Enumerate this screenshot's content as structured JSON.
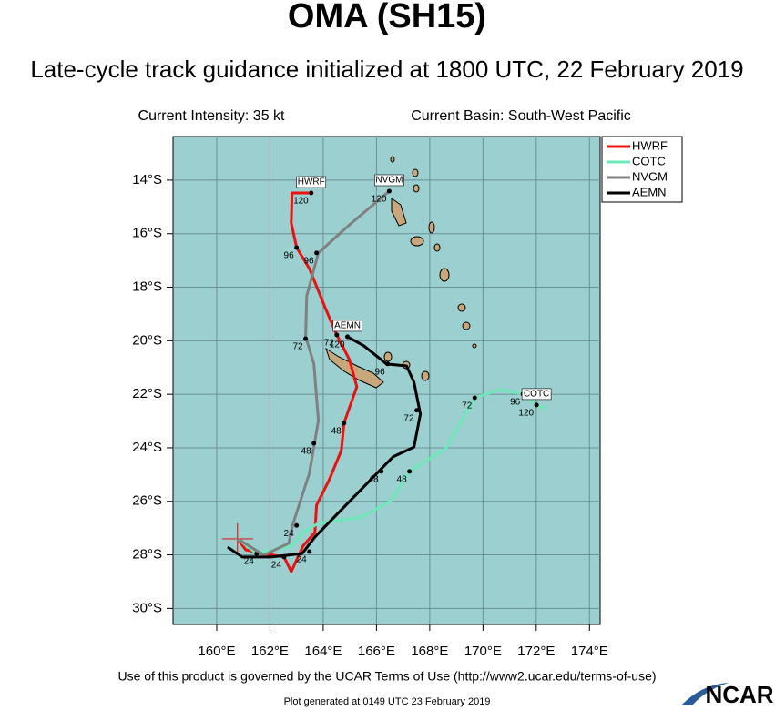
{
  "chart_data": {
    "type": "track",
    "title": "OMA (SH15)",
    "subtitle": "Late-cycle track guidance initialized at 1800 UTC, 22 February 2019",
    "current_intensity": "Current Intensity: 35 kt",
    "current_basin": "Current Basin: South-West Pacific",
    "footer": "Use of this product is governed by the UCAR Terms of Use (http://www2.ucar.edu/terms-of-use)",
    "generated": "Plot generated at 0149 UTC  23 February 2019",
    "logo": "NCAR",
    "xlim": [
      158.36,
      174.4
    ],
    "ylim": [
      -30.6,
      -12.37
    ],
    "xticks": [
      {
        "value": 160,
        "label": "160°E"
      },
      {
        "value": 162,
        "label": "162°E"
      },
      {
        "value": 164,
        "label": "164°E"
      },
      {
        "value": 166,
        "label": "166°E"
      },
      {
        "value": 168,
        "label": "168°E"
      },
      {
        "value": 170,
        "label": "170°E"
      },
      {
        "value": 172,
        "label": "172°E"
      },
      {
        "value": 174,
        "label": "174°E"
      }
    ],
    "yticks": [
      {
        "value": -14,
        "label": "14°S"
      },
      {
        "value": -16,
        "label": "16°S"
      },
      {
        "value": -18,
        "label": "18°S"
      },
      {
        "value": -20,
        "label": "20°S"
      },
      {
        "value": -22,
        "label": "22°S"
      },
      {
        "value": -24,
        "label": "24°S"
      },
      {
        "value": -26,
        "label": "26°S"
      },
      {
        "value": -28,
        "label": "28°S"
      },
      {
        "value": -30,
        "label": "30°S"
      }
    ],
    "grid": true,
    "legend": "top-right",
    "initial_position": {
      "x": 160.78,
      "y": -27.4
    },
    "series": [
      {
        "name": "HWRF",
        "color": "#e8130f",
        "x": [
          160.78,
          161.09,
          161.77,
          162.53,
          162.8,
          163.24,
          163.69,
          163.75,
          164.23,
          164.68,
          164.78,
          165.26,
          164.98,
          164.51,
          164.1,
          163.48,
          163.0,
          162.8,
          162.83,
          163.55
        ],
        "values": [
          -27.4,
          -27.81,
          -27.95,
          -28.08,
          -28.63,
          -27.67,
          -27.16,
          -26.14,
          -25.19,
          -24.1,
          -23.08,
          -21.72,
          -20.7,
          -19.78,
          -18.83,
          -17.3,
          -16.52,
          -15.6,
          -14.48,
          -14.48
        ],
        "forecast_points": [
          {
            "hour": 24,
            "x": 162.53,
            "y": -28.08
          },
          {
            "hour": 48,
            "x": 164.78,
            "y": -23.08
          },
          {
            "hour": 72,
            "x": 164.51,
            "y": -19.78
          },
          {
            "hour": 96,
            "x": 163.0,
            "y": -16.52
          },
          {
            "hour": 120,
            "x": 163.55,
            "y": -14.48
          }
        ]
      },
      {
        "name": "COTC",
        "color": "#6fe8b8",
        "x": [
          160.78,
          161.5,
          162.8,
          163.24,
          163.82,
          165.46,
          166.55,
          167.24,
          168.6,
          169.45,
          169.69,
          170.65,
          171.5,
          172.01,
          172.35
        ],
        "values": [
          -27.4,
          -27.95,
          -27.67,
          -27.16,
          -26.82,
          -26.59,
          -25.97,
          -24.88,
          -24.03,
          -22.57,
          -22.13,
          -21.82,
          -21.99,
          -22.4,
          -22.54
        ],
        "forecast_points": [
          {
            "hour": 24,
            "x": 161.5,
            "y": -27.95
          },
          {
            "hour": 48,
            "x": 167.24,
            "y": -24.88
          },
          {
            "hour": 72,
            "x": 169.69,
            "y": -22.13
          },
          {
            "hour": 96,
            "x": 171.5,
            "y": -21.99
          },
          {
            "hour": 120,
            "x": 172.01,
            "y": -22.4
          }
        ]
      },
      {
        "name": "NVGM",
        "color": "#808080",
        "x": [
          160.78,
          161.77,
          162.7,
          162.87,
          163.48,
          163.82,
          163.65,
          163.34,
          163.38,
          163.82,
          164.95,
          166.48
        ],
        "values": [
          -27.4,
          -28.01,
          -27.57,
          -26.82,
          -24.95,
          -22.98,
          -20.87,
          -19.85,
          -18.32,
          -16.72,
          -15.7,
          -14.41
        ],
        "forecast_points": [
          {
            "hour": 24,
            "x": 163.0,
            "y": -26.9
          },
          {
            "hour": 48,
            "x": 163.65,
            "y": -23.83
          },
          {
            "hour": 72,
            "x": 163.34,
            "y": -19.92
          },
          {
            "hour": 96,
            "x": 163.75,
            "y": -16.72
          },
          {
            "hour": 120,
            "x": 166.48,
            "y": -14.41
          }
        ]
      },
      {
        "name": "AEMN",
        "color": "#000000",
        "x": [
          160.41,
          160.96,
          162.05,
          163.21,
          163.69,
          164.85,
          166.62,
          167.41,
          167.65,
          167.41,
          167.13,
          166.38,
          165.53,
          164.91
        ],
        "values": [
          -27.71,
          -28.08,
          -28.08,
          -27.95,
          -27.33,
          -26.14,
          -24.34,
          -23.97,
          -22.74,
          -21.55,
          -20.94,
          -20.87,
          -20.19,
          -19.85
        ],
        "forecast_points": [
          {
            "hour": 24,
            "x": 163.48,
            "y": -27.88
          },
          {
            "hour": 48,
            "x": 166.18,
            "y": -24.88
          },
          {
            "hour": 72,
            "x": 167.51,
            "y": -22.6
          },
          {
            "hour": 96,
            "x": 166.42,
            "y": -20.87
          },
          {
            "hour": 120,
            "x": 164.91,
            "y": -19.85
          }
        ]
      }
    ]
  }
}
